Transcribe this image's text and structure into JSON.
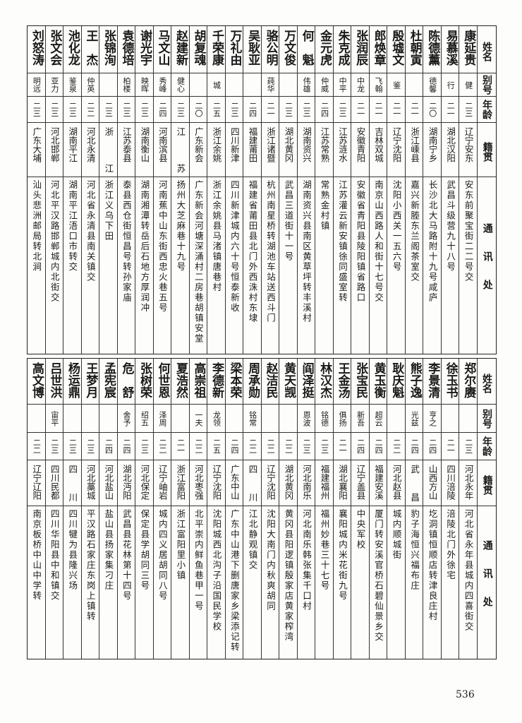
{
  "headers": {
    "name": "姓名",
    "alias": "别号",
    "age": "年龄",
    "native": "籍贯",
    "address": "通讯处"
  },
  "tables": [
    {
      "rows": [
        {
          "name": "康延贵",
          "alias": "健",
          "age": "二三",
          "native": "辽宁安东",
          "address": "安东前聚宝街二二号交"
        },
        {
          "name": "易慕溪",
          "alias": "行",
          "age": "二一",
          "native": "湖北汉阳",
          "address": "武昌斗级营九十八号"
        },
        {
          "name": "陈德薰",
          "alias": "德馨",
          "age": "二〇",
          "native": "湖南宁乡",
          "address": "长沙北大马路附十九号咸庐"
        },
        {
          "name": "杜朝寅",
          "alias": "",
          "age": "二一",
          "native": "浙江嵊县",
          "address": "嘉兴新塍东兰阁茶室交"
        },
        {
          "name": "殷墟文",
          "alias": "鉴",
          "age": "二一",
          "native": "辽宁沈阳",
          "address": "沈阳小西关一五六号"
        },
        {
          "name": "郎焕章",
          "alias": "飞翰",
          "age": "二一",
          "native": "吉林双城",
          "address": "南京山西路人和街十七号交"
        },
        {
          "name": "张润辰",
          "alias": "中龙",
          "age": "二一",
          "native": "安徽青阳",
          "address": "安徽省青阳县陵阳镇省路口"
        },
        {
          "name": "朱克成",
          "alias": "中平",
          "age": "二三",
          "native": "江苏涟水",
          "address": "江苏灌云新安镇徐同盛室转"
        },
        {
          "name": "金元虎",
          "alias": "仲威",
          "age": "二四",
          "native": "江苏常熟",
          "address": "常熟金村镇"
        },
        {
          "name": "何　魁",
          "alias": "伟雄",
          "age": "二三",
          "native": "湖南资兴",
          "address": "湖南资兴县南区黄草坪转丰溪村"
        },
        {
          "name": "万文俊",
          "alias": "",
          "age": "二三",
          "native": "湖北黄冈",
          "address": "武昌三道街十一号"
        },
        {
          "name": "骆公明",
          "alias": "莼华",
          "age": "二一",
          "native": "浙江诸暨",
          "address": "杭州南星桥转湖池车站送西斗门"
        },
        {
          "name": "吴耿亚",
          "alias": "",
          "age": "二四",
          "native": "福建莆田",
          "address": "福建省莆田县北门外西洙村东埭"
        },
        {
          "name": "万礼由",
          "alias": "",
          "age": "二三",
          "native": "四川新津",
          "address": "四川新津城内六十号恒泰新收"
        },
        {
          "name": "千荣康",
          "alias": "城",
          "age": "二五",
          "native": "浙江余姚",
          "address": "浙江余姚县马渚镇唐巷村"
        },
        {
          "name": "胡复魂",
          "alias": "",
          "age": "二〇",
          "native": "广东新会",
          "address": "广东新会河塘深涌村二房巷胡镇安堂"
        },
        {
          "name": "赵建新",
          "alias": "健心",
          "age": "二三",
          "native": "江苏",
          "address": "扬州大芝麻巷十九号"
        },
        {
          "name": "马文山",
          "alias": "秀峰",
          "age": "二四",
          "native": "河南滨县",
          "address": "河南蕉中山东街西忠火巷五号"
        },
        {
          "name": "谢光宇",
          "alias": "映晖",
          "age": "二三",
          "native": "湖南衡山",
          "address": "湖南湘潭转岳后石地方厚润冲"
        },
        {
          "name": "袁德培",
          "alias": "柏楼",
          "age": "二三",
          "native": "江苏泰县",
          "address": "泰县西仓街恒昌号转孙家庙"
        },
        {
          "name": "张锦洵",
          "alias": "",
          "age": "二三",
          "native": "浙江",
          "address": "浙江义乌下田"
        },
        {
          "name": "王　杰",
          "alias": "仲英",
          "age": "二二",
          "native": "河北永清",
          "address": "河北省永清县南关镇交"
        },
        {
          "name": "池化龙",
          "alias": "鉴泉",
          "age": "二三",
          "native": "湖南平江",
          "address": "湖南平江浯口市转交"
        },
        {
          "name": "张文会",
          "alias": "亚力",
          "age": "二三",
          "native": "河北邯郸",
          "address": "河北平汉路邯郸城内北街交"
        },
        {
          "name": "刘怒涛",
          "alias": "明远",
          "age": "二三",
          "native": "广东大埔",
          "address": "汕头悲洲邮局转北涧"
        }
      ]
    },
    {
      "rows": [
        {
          "name": "郑尔赓",
          "alias": "",
          "age": "二三",
          "native": "河北永年",
          "address": "河北省永年县城内四喜街交"
        },
        {
          "name": "徐玉书",
          "alias": "",
          "age": "二一",
          "native": "四川涪陵",
          "address": "涪陵北门外徐宅"
        },
        {
          "name": "李景清",
          "alias": "亨之",
          "age": "二四",
          "native": "山西方山",
          "address": "圪洞镇恒顺店转津良庄村"
        },
        {
          "name": "熊子逸",
          "alias": "光兹",
          "age": "二四",
          "native": "武昌",
          "address": "豹子海恒兴福布庄"
        },
        {
          "name": "耿庆魁",
          "alias": "",
          "age": "二二",
          "native": "河北赵县",
          "address": "城内顺城街"
        },
        {
          "name": "黄玉衡",
          "alias": "超云",
          "age": "二四",
          "native": "福建安溪",
          "address": "厦门转安溪官桥石碧仙景乡交"
        },
        {
          "name": "张宝民",
          "alias": "新吾",
          "age": "二四",
          "native": "辽宁盖县",
          "address": "中央军校"
        },
        {
          "name": "王金汤",
          "alias": "俱扬",
          "age": "二一",
          "native": "湖北襄阳",
          "address": "襄阳城内米花街九号"
        },
        {
          "name": "林汉杰",
          "alias": "铭德",
          "age": "二三",
          "native": "福建福州",
          "address": "福州妙巷三十七号"
        },
        {
          "name": "阎泽挺",
          "alias": "恩波",
          "age": "二三",
          "native": "河北南乐",
          "address": "河北南乐韩张集千口村"
        },
        {
          "name": "黄天觊",
          "alias": "",
          "age": "二二",
          "native": "湖北黄冈",
          "address": "黄冈县阳逻镇殷家店黄家榨湾"
        },
        {
          "name": "赵洁民",
          "alias": "",
          "age": "二二",
          "native": "辽宁沈阳",
          "address": "沈阳大南门内秋爽胡同"
        },
        {
          "name": "周承勋",
          "alias": "铭常",
          "age": "二二",
          "native": "四川",
          "address": "江北静观镇交"
        },
        {
          "name": "梁本荣",
          "alias": "",
          "age": "二四",
          "native": "广东中山",
          "address": "广东中山港下删唐家乡梁添记转"
        },
        {
          "name": "李德新",
          "alias": "龙领",
          "age": "二五",
          "native": "辽宁沈阳",
          "address": "沈阳城西北沟子沿国民学校"
        },
        {
          "name": "高崇祖",
          "alias": "一夫",
          "age": "二二",
          "native": "河北枣强",
          "address": "北平崇内鲜鱼巷甲一号"
        },
        {
          "name": "夏浩然",
          "alias": "",
          "age": "二一",
          "native": "浙江富阳",
          "address": "浙江富阳里小镇"
        },
        {
          "name": "何世恩",
          "alias": "泽周",
          "age": "二二",
          "native": "辽宁岫岩",
          "address": "城内四义居胡同八号"
        },
        {
          "name": "张树荣",
          "alias": "绍五",
          "age": "二三",
          "native": "河北保定",
          "address": "保定县学胡同三号"
        },
        {
          "name": "危　舒",
          "alias": "舍予",
          "age": "二四",
          "native": "湖北沔阳",
          "address": "武昌县花林第十四号"
        },
        {
          "name": "孟宪宸",
          "alias": "",
          "age": "二四",
          "native": "河北盐山",
          "address": "盐山县扬家集刁庄"
        },
        {
          "name": "王梦月",
          "alias": "",
          "age": "二三",
          "native": "河北藁城",
          "address": "平汉路石家庄东岗上镇转"
        },
        {
          "name": "杨运鼎",
          "alias": "",
          "age": "二三",
          "native": "四川",
          "address": "四川犍为县隆兴场"
        },
        {
          "name": "吕世洪",
          "alias": "宙平",
          "age": "二三",
          "native": "四川民都",
          "address": "四川华阳县中和镇交"
        },
        {
          "name": "高文博",
          "alias": "",
          "age": "二二",
          "native": "辽宁辽阳",
          "address": "南京板桥中山中学转"
        }
      ]
    }
  ],
  "page_number": "536"
}
